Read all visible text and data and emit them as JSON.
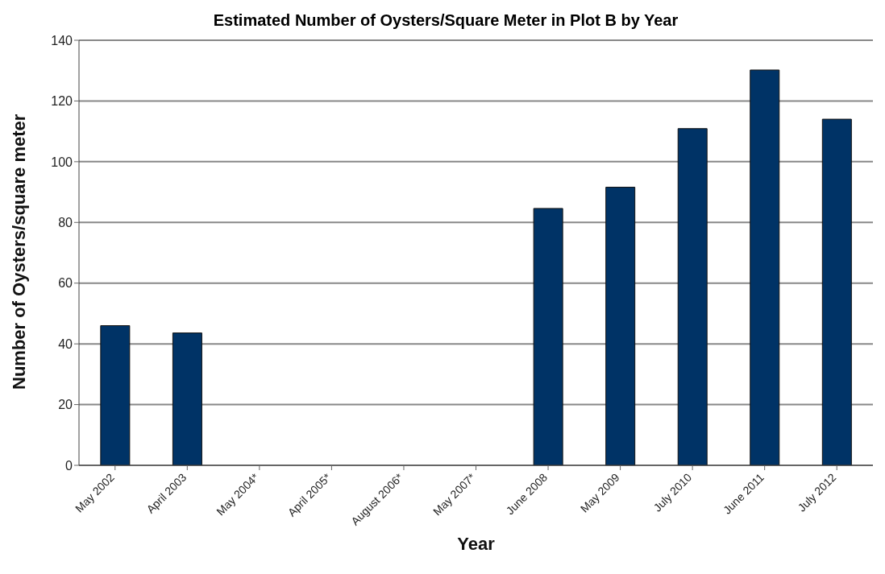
{
  "chart_data": {
    "type": "bar",
    "title": "Estimated Number of Oysters/Square Meter in Plot B by Year",
    "xlabel": "Year",
    "ylabel": "Number of Oysters/square meter",
    "categories": [
      "May 2002",
      "April 2003",
      "May 2004*",
      "April 2005*",
      "August 2006*",
      "May 2007*",
      "June 2008",
      "May 2009",
      "July 2010",
      "June 2011",
      "July 2012"
    ],
    "values": [
      46,
      43.6,
      null,
      null,
      null,
      null,
      84.6,
      91.6,
      110.9,
      130.2,
      114
    ],
    "color": "#003366",
    "ylim": [
      0,
      140
    ],
    "yticks": [
      0,
      20,
      40,
      60,
      80,
      100,
      120,
      140
    ],
    "grid": "y"
  }
}
